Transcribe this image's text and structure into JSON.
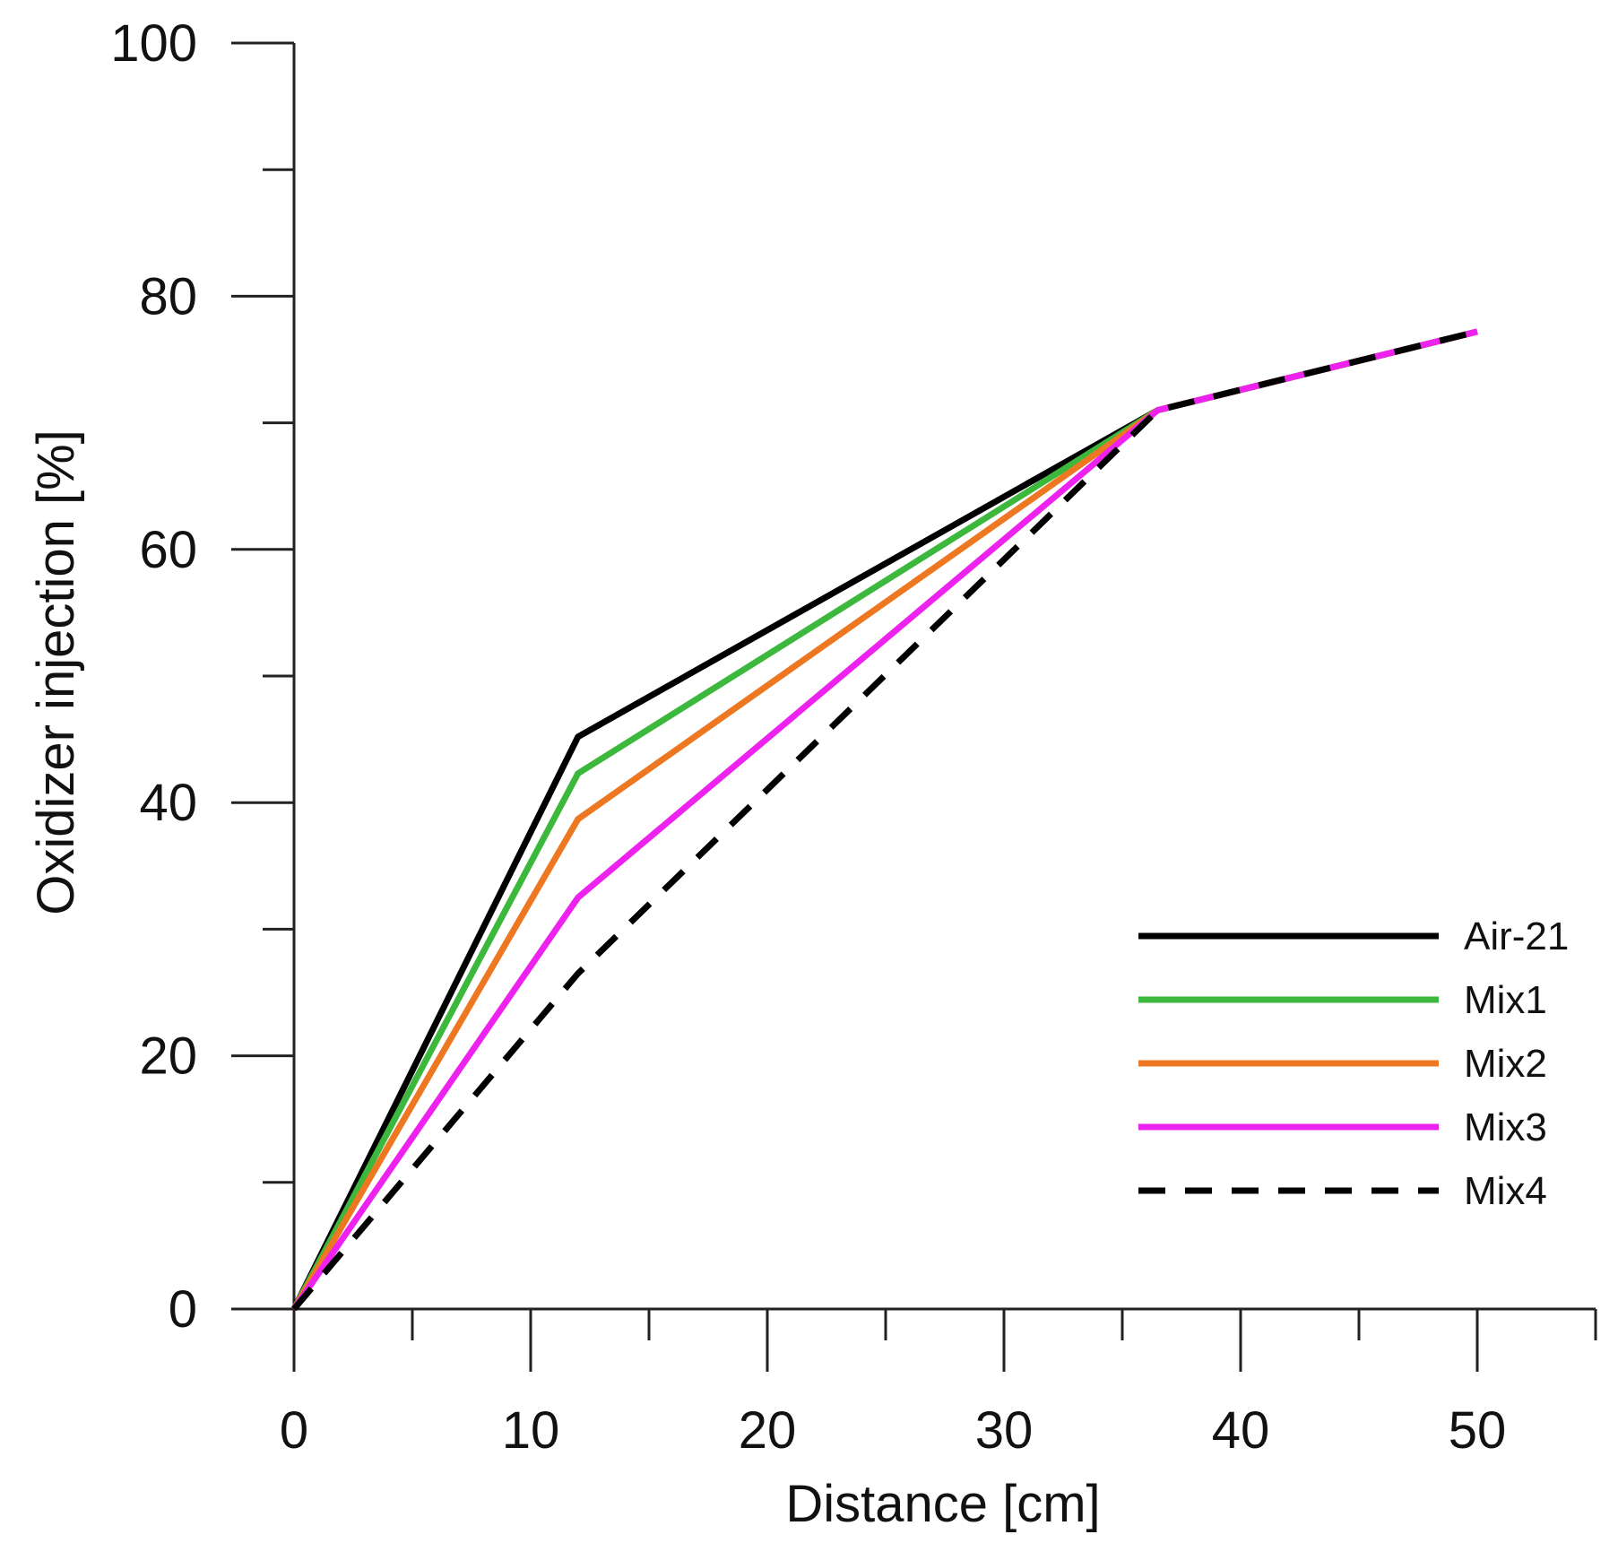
{
  "chart_data": {
    "type": "line",
    "title": "",
    "xlabel": "Distance [cm]",
    "ylabel": "Oxidizer injection [%]",
    "xlim": [
      0,
      55
    ],
    "ylim": [
      0,
      100
    ],
    "xticks": [
      0,
      10,
      20,
      30,
      40,
      50
    ],
    "xtick_labels": [
      "0",
      "10",
      "20",
      "30",
      "40",
      "50"
    ],
    "x_minor_ticks": [
      5,
      15,
      25,
      35,
      45,
      55
    ],
    "yticks": [
      0,
      20,
      40,
      60,
      80,
      100
    ],
    "ytick_labels": [
      "0",
      "20",
      "40",
      "60",
      "80",
      "100"
    ],
    "y_minor_ticks": [
      10,
      30,
      50,
      70,
      90
    ],
    "grid": false,
    "legend_position": "bottom-right",
    "series": [
      {
        "name": "Air-21",
        "color": "#000000",
        "dash": "solid",
        "x": [
          0,
          12,
          36.5,
          50
        ],
        "y": [
          0,
          45.2,
          71,
          77.2
        ]
      },
      {
        "name": "Mix1",
        "color": "#3cb83c",
        "dash": "solid",
        "x": [
          0,
          12,
          36.5,
          50
        ],
        "y": [
          0,
          42.3,
          71,
          77.2
        ]
      },
      {
        "name": "Mix2",
        "color": "#ee7722",
        "dash": "solid",
        "x": [
          0,
          12,
          36.5,
          50
        ],
        "y": [
          0,
          38.7,
          71,
          77.2
        ]
      },
      {
        "name": "Mix3",
        "color": "#ee22ee",
        "dash": "solid",
        "x": [
          0,
          12,
          36.5,
          50
        ],
        "y": [
          0,
          32.5,
          71,
          77.2
        ]
      },
      {
        "name": "Mix4",
        "color": "#000000",
        "dash": "dashed",
        "x": [
          0,
          12,
          36.5,
          50
        ],
        "y": [
          0,
          26.5,
          71,
          77.2
        ]
      }
    ]
  }
}
